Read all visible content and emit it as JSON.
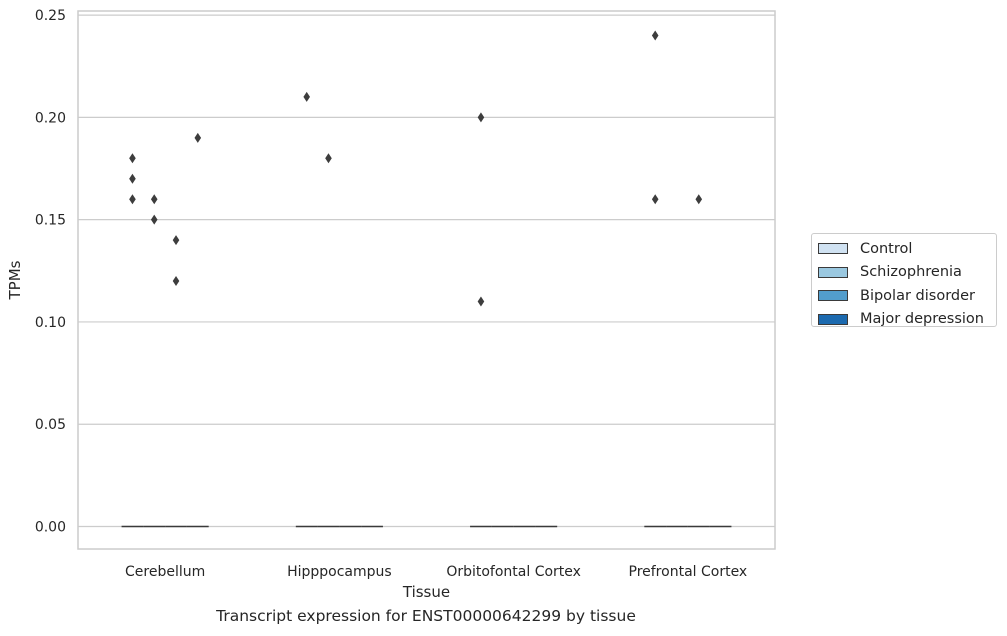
{
  "chart_data": {
    "type": "box",
    "title": "",
    "xlabel": "Tissue",
    "ylabel": "TPMs",
    "caption": "Transcript expression for ENST00000642299 by tissue",
    "categories": [
      "Cerebellum",
      "Hipppocampus",
      "Orbitofontal Cortex",
      "Prefrontal Cortex"
    ],
    "yticks": [
      "0.00",
      "0.05",
      "0.10",
      "0.15",
      "0.20",
      "0.25"
    ],
    "ylim": [
      -0.011,
      0.252
    ],
    "grid": "horizontal",
    "legend_position": "right",
    "series": [
      {
        "name": "Control",
        "color": "#d0e2f2",
        "median": [
          0,
          0,
          0,
          0
        ],
        "outliers": [
          [
            0.18,
            0.17,
            0.16
          ],
          [
            0.21
          ],
          [
            0.2,
            0.11
          ],
          [
            0.24,
            0.16
          ]
        ]
      },
      {
        "name": "Schizophrenia",
        "color": "#9ac8e0",
        "median": [
          0,
          0,
          0,
          0
        ],
        "outliers": [
          [
            0.16,
            0.15
          ],
          [
            0.18
          ],
          [],
          []
        ]
      },
      {
        "name": "Bipolar disorder",
        "color": "#529dcc",
        "median": [
          0,
          0,
          0,
          0
        ],
        "outliers": [
          [
            0.14,
            0.12
          ],
          [],
          [],
          [
            0.16
          ]
        ]
      },
      {
        "name": "Major depression",
        "color": "#1c6aaf",
        "median": [
          0,
          0,
          0,
          0
        ],
        "outliers": [
          [
            0.19
          ],
          [],
          [],
          []
        ]
      }
    ]
  }
}
